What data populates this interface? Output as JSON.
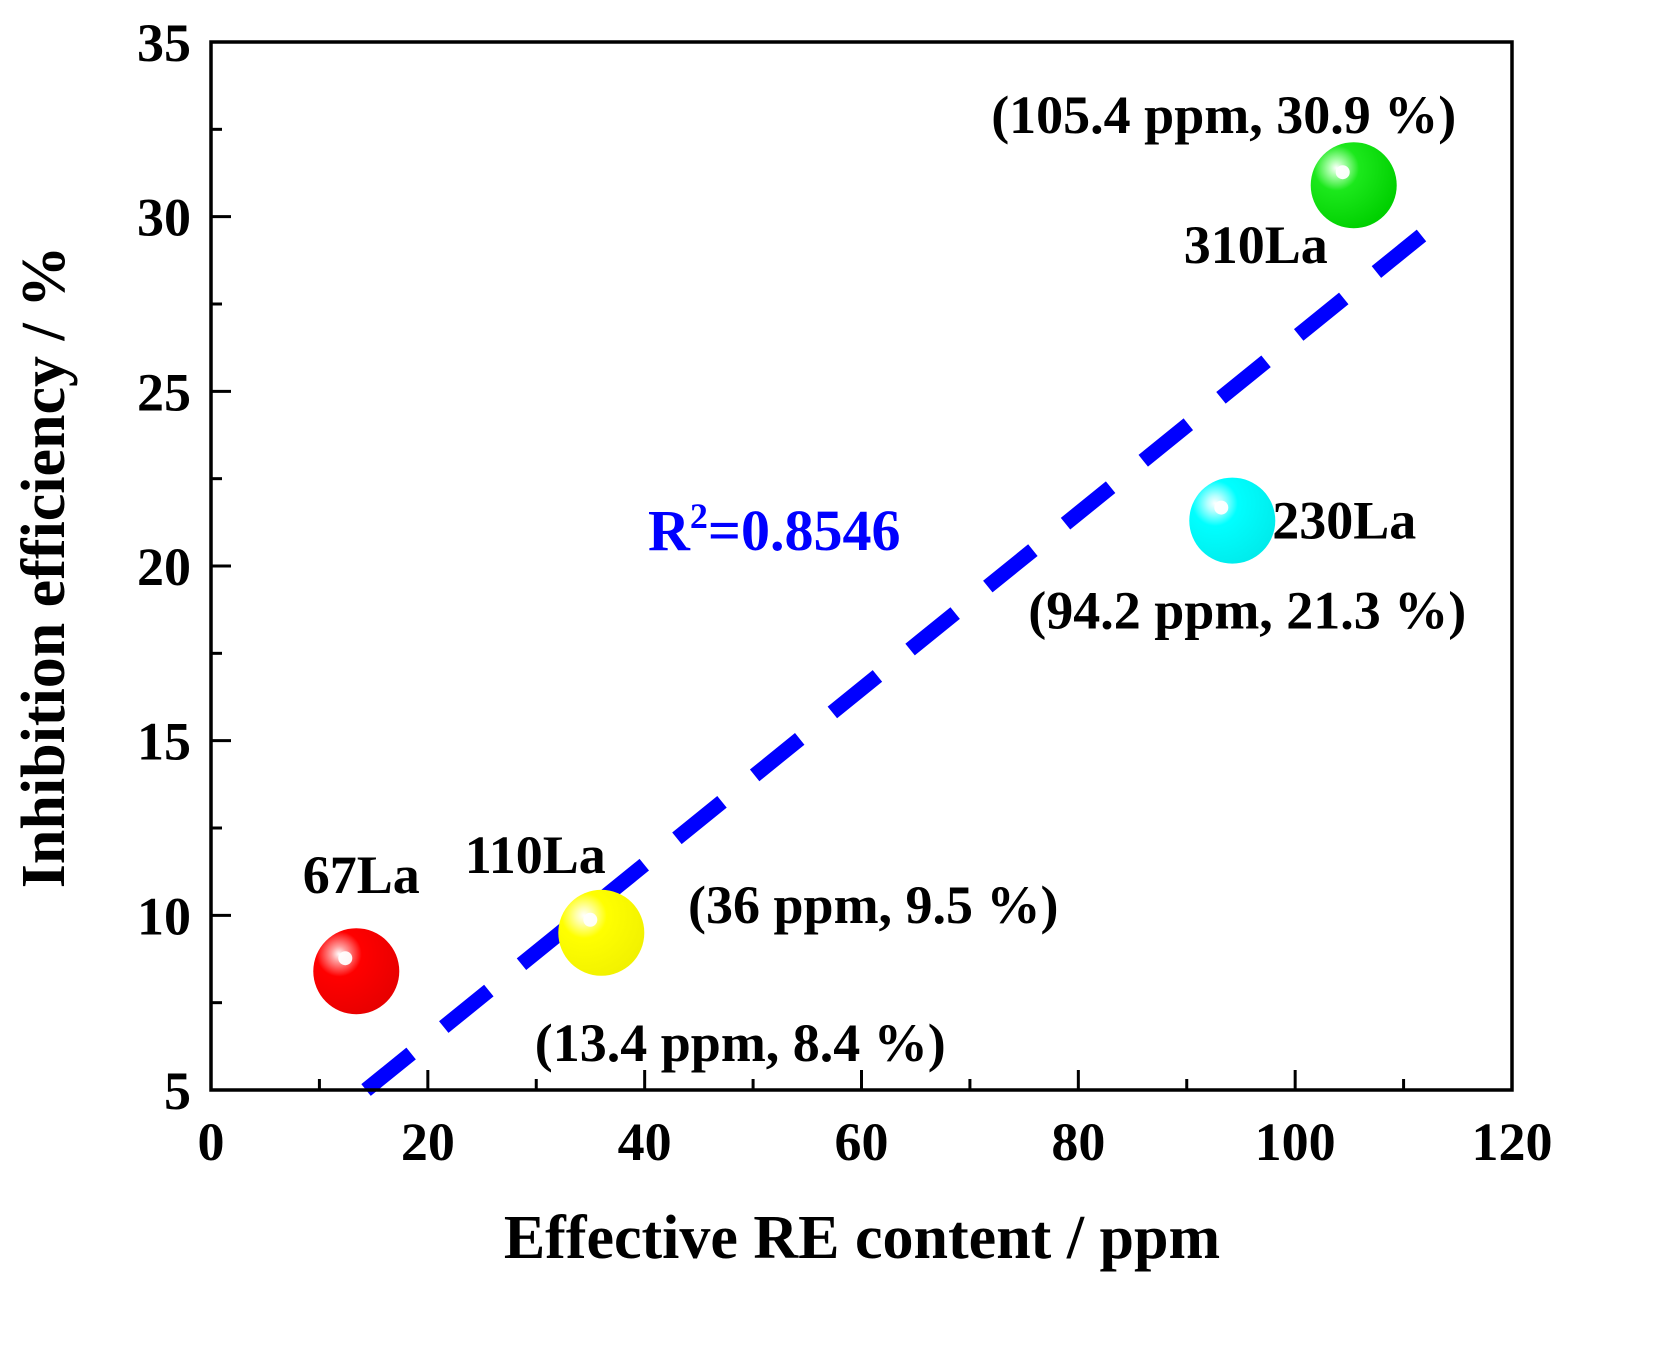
{
  "chart_data": {
    "type": "scatter",
    "xlabel": "Effective RE content / ppm",
    "ylabel": "Inhibition efficiency / %",
    "xlim": [
      0,
      120
    ],
    "ylim": [
      5,
      35
    ],
    "xticks": [
      0,
      20,
      40,
      60,
      80,
      100,
      120
    ],
    "yticks": [
      5,
      10,
      15,
      20,
      25,
      30,
      35
    ],
    "grid": false,
    "legend": "none",
    "points": [
      {
        "name": "67La",
        "x": 13.4,
        "y": 8.4,
        "coord_label": "(13.4 ppm, 8.4 %)",
        "color": "#ff0000"
      },
      {
        "name": "110La",
        "x": 36,
        "y": 9.5,
        "coord_label": "(36 ppm, 9.5 %)",
        "color": "#ffff00"
      },
      {
        "name": "230La",
        "x": 94.2,
        "y": 21.3,
        "coord_label": "(94.2 ppm, 21.3 %)",
        "color": "#00ffff"
      },
      {
        "name": "310La",
        "x": 105.4,
        "y": 30.9,
        "coord_label": "(105.4 ppm, 30.9 %)",
        "color": "#00e600"
      }
    ],
    "fit_line": {
      "x": [
        14.3,
        113
      ],
      "y": [
        5,
        29.8
      ],
      "style": "dashed",
      "color": "#0000ff",
      "label_sup": "2",
      "label_value": "=0.8546",
      "label_prefix": "R"
    }
  }
}
